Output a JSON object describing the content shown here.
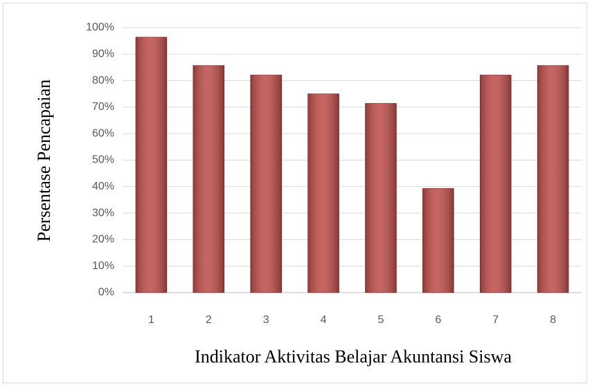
{
  "chart_data": {
    "type": "bar",
    "y_label": "Persentase Pencapaian",
    "x_label": "Indikator Aktivitas Belajar Akuntansi Siswa",
    "categories": [
      "1",
      "2",
      "3",
      "4",
      "5",
      "6",
      "7",
      "8"
    ],
    "values": [
      96.4,
      85.7,
      82.1,
      75,
      71.4,
      39.3,
      82.1,
      85.7
    ],
    "color": "#c0504d",
    "ylim": [
      0,
      100
    ],
    "yticks": [
      {
        "value": 0,
        "label": "0%"
      },
      {
        "value": 10,
        "label": "10%"
      },
      {
        "value": 20,
        "label": "20%"
      },
      {
        "value": 30,
        "label": "30%"
      },
      {
        "value": 40,
        "label": "40%"
      },
      {
        "value": 50,
        "label": "50%"
      },
      {
        "value": 60,
        "label": "60%"
      },
      {
        "value": 70,
        "label": "70%"
      },
      {
        "value": 80,
        "label": "80%"
      },
      {
        "value": 90,
        "label": "90%"
      },
      {
        "value": 100,
        "label": "100%"
      }
    ],
    "grid": true
  }
}
